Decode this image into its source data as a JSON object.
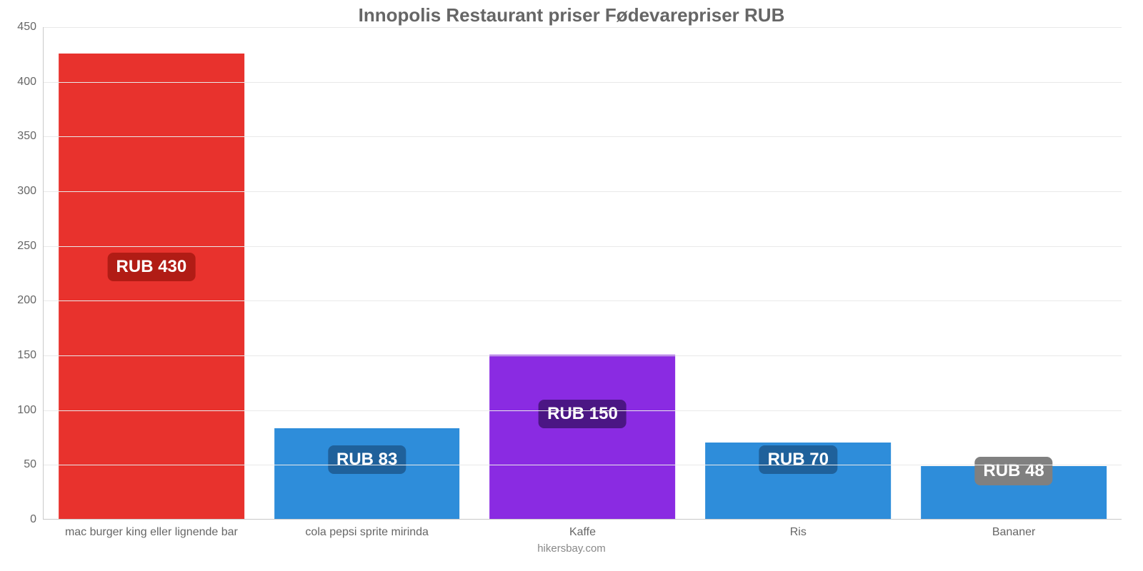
{
  "chart": {
    "type": "bar",
    "title": "Innopolis Restaurant priser Fødevarepriser RUB",
    "title_color": "#666666",
    "title_fontsize": 26,
    "background_color": "#ffffff",
    "grid_color": "#e9e9e9",
    "axis_color": "#c9c9c9",
    "tick_color": "#666666",
    "tick_fontsize": 16,
    "y": {
      "min": 0,
      "max": 450,
      "tick_step": 50,
      "ticks": [
        0,
        50,
        100,
        150,
        200,
        250,
        300,
        350,
        400,
        450
      ]
    },
    "bar_width_ratio": 0.86,
    "value_label_fontsize": 24,
    "value_label_prefix": "RUB ",
    "series": [
      {
        "category": "mac burger king eller lignende bar",
        "value": 430,
        "bar_height_visual": 425,
        "bar_color": "#e8322d",
        "badge_bg": "#b11c15",
        "badge_text_color": "#ffffff",
        "badge_y_value": 230
      },
      {
        "category": "cola pepsi sprite mirinda",
        "value": 83,
        "bar_height_visual": 83,
        "bar_color": "#2e8dda",
        "badge_bg": "#1f619b",
        "badge_text_color": "#ffffff",
        "badge_y_value": 54
      },
      {
        "category": "Kaffe",
        "value": 150,
        "bar_height_visual": 150,
        "bar_color": "#8a2be2",
        "badge_bg": "#4b1684",
        "badge_text_color": "#ffffff",
        "badge_y_value": 96
      },
      {
        "category": "Ris",
        "value": 70,
        "bar_height_visual": 70,
        "bar_color": "#2e8dda",
        "badge_bg": "#1f619b",
        "badge_text_color": "#ffffff",
        "badge_y_value": 54
      },
      {
        "category": "Bananer",
        "value": 48,
        "bar_height_visual": 48,
        "bar_color": "#2e8dda",
        "badge_bg": "#808080",
        "badge_text_color": "#ffffff",
        "badge_y_value": 44
      }
    ],
    "source_text": "hikersbay.com",
    "source_color": "#888888",
    "source_fontsize": 15
  }
}
